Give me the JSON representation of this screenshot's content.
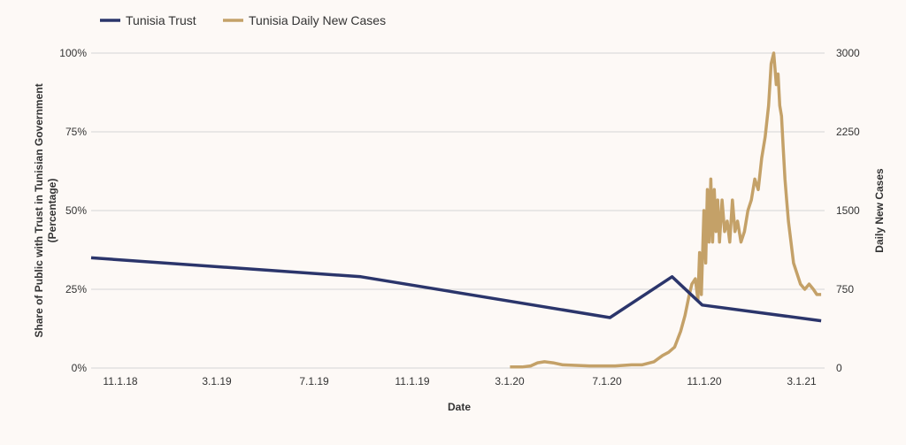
{
  "colors": {
    "background": "#fdf9f6",
    "trust": "#2b356b",
    "cases": "#c4a168",
    "grid": "#d5d5d5",
    "text": "#333333"
  },
  "chart_data": {
    "type": "line",
    "title": "",
    "legend": {
      "placement": "top-left",
      "entries": [
        "Tunisia Trust",
        "Tunisia Daily New Cases"
      ]
    },
    "xlabel": "Date",
    "ylabel_left": "Share of Public with Trust in Tunisian Government (Percentage)",
    "ylabel_left_lines": [
      "Share of Public with Trust in Tunisian Government",
      "(Percentage)"
    ],
    "ylabel_right": "Daily New Cases",
    "x_ticks": [
      "11.1.18",
      "3.1.19",
      "7.1.19",
      "11.1.19",
      "3.1.20",
      "7.1.20",
      "11.1.20",
      "3.1.21"
    ],
    "x_range": [
      "2018-11-01",
      "2021-03-01"
    ],
    "y_left_ticks": [
      "0%",
      "25%",
      "50%",
      "75%",
      "100%"
    ],
    "y_left_range": [
      0,
      100
    ],
    "y_right_ticks": [
      "0",
      "750",
      "1500",
      "2250",
      "3000"
    ],
    "y_right_range": [
      0,
      3000
    ],
    "grid": "horizontal",
    "series": [
      {
        "name": "Tunisia Trust",
        "axis": "left",
        "x": [
          "2018-11-01",
          "2019-09-10",
          "2020-06-25",
          "2020-09-05",
          "2020-10-10",
          "2021-02-25"
        ],
        "values": [
          35,
          29,
          16,
          29,
          20,
          15
        ]
      },
      {
        "name": "Tunisia Daily New Cases",
        "axis": "right",
        "x": [
          "2020-03-01",
          "2020-03-15",
          "2020-03-25",
          "2020-04-02",
          "2020-04-10",
          "2020-04-20",
          "2020-05-01",
          "2020-06-01",
          "2020-07-01",
          "2020-07-20",
          "2020-08-01",
          "2020-08-15",
          "2020-08-25",
          "2020-09-01",
          "2020-09-08",
          "2020-09-15",
          "2020-09-20",
          "2020-09-25",
          "2020-09-28",
          "2020-10-02",
          "2020-10-05",
          "2020-10-07",
          "2020-10-09",
          "2020-10-12",
          "2020-10-14",
          "2020-10-16",
          "2020-10-18",
          "2020-10-20",
          "2020-10-22",
          "2020-10-24",
          "2020-10-26",
          "2020-10-28",
          "2020-10-30",
          "2020-11-02",
          "2020-11-05",
          "2020-11-08",
          "2020-11-11",
          "2020-11-14",
          "2020-11-17",
          "2020-11-20",
          "2020-11-24",
          "2020-11-28",
          "2020-12-02",
          "2020-12-06",
          "2020-12-10",
          "2020-12-14",
          "2020-12-18",
          "2020-12-22",
          "2020-12-26",
          "2020-12-29",
          "2021-01-01",
          "2021-01-04",
          "2021-01-06",
          "2021-01-08",
          "2021-01-10",
          "2021-01-12",
          "2021-01-14",
          "2021-01-16",
          "2021-01-18",
          "2021-01-21",
          "2021-01-24",
          "2021-01-28",
          "2021-02-01",
          "2021-02-06",
          "2021-02-11",
          "2021-02-16",
          "2021-02-20",
          "2021-02-25"
        ],
        "values": [
          10,
          10,
          20,
          50,
          60,
          50,
          30,
          20,
          20,
          30,
          30,
          60,
          120,
          150,
          200,
          350,
          500,
          700,
          800,
          850,
          650,
          1100,
          700,
          1500,
          1000,
          1700,
          1200,
          1800,
          1200,
          1700,
          1300,
          1600,
          1200,
          1600,
          1300,
          1400,
          1200,
          1600,
          1300,
          1400,
          1200,
          1300,
          1500,
          1600,
          1800,
          1700,
          2000,
          2200,
          2500,
          2900,
          3000,
          2700,
          2800,
          2500,
          2400,
          2100,
          1800,
          1600,
          1400,
          1200,
          1000,
          900,
          800,
          750,
          800,
          750,
          700,
          700
        ]
      }
    ]
  }
}
